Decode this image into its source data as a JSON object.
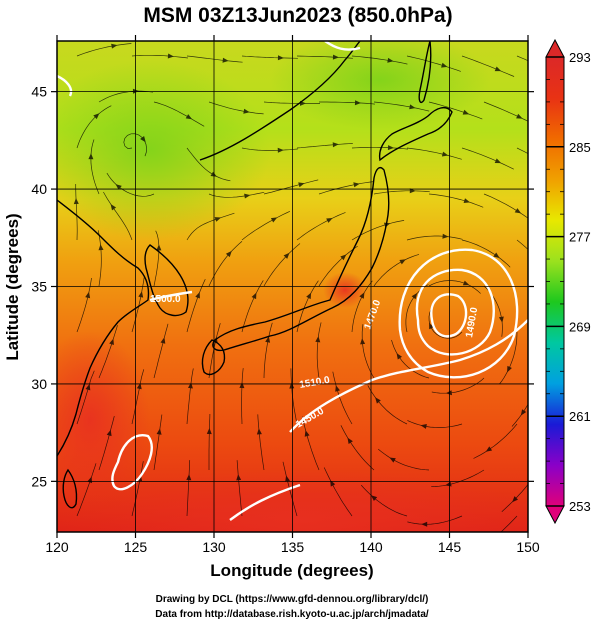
{
  "map": {
    "title": "MSM 03Z13Jun2023 (850.0hPa)",
    "xlabel": "Longitude (degrees)",
    "ylabel": "Latitude  (degrees)",
    "lon_range": [
      120,
      150
    ],
    "lat_range": [
      22.4,
      47.6
    ],
    "lon_ticks": [
      "120",
      "125",
      "130",
      "135",
      "140",
      "145",
      "150"
    ],
    "lat_ticks": [
      "25",
      "30",
      "35",
      "40",
      "45"
    ],
    "lon_tick_values": [
      120,
      125,
      130,
      135,
      140,
      145,
      150
    ],
    "lat_tick_values": [
      25,
      30,
      35,
      40,
      45
    ],
    "field": "temperature with streamlines and isobars",
    "grid": true
  },
  "colorbar": {
    "min": 253,
    "max": 293,
    "labels": [
      "293",
      "285",
      "277",
      "269",
      "261",
      "253"
    ],
    "label_values": [
      293,
      285,
      277,
      269,
      261,
      253
    ],
    "colors": [
      "#e0007a",
      "#8a00c8",
      "#1a1ad6",
      "#00a0e0",
      "#00c8a0",
      "#1ec81e",
      "#9be11e",
      "#e8e800",
      "#f0a000",
      "#f06a00",
      "#e83214",
      "#dc2828"
    ]
  },
  "contours": {
    "labels": [
      "1450.0",
      "1470.0",
      "1490.0",
      "1500.0",
      "1510.0"
    ]
  },
  "credits": {
    "line1": "Drawing by DCL (https://www.gfd-dennou.org/library/dcl/)",
    "line2": "Data from http://database.rish.kyoto-u.ac.jp/arch/jmadata/"
  }
}
